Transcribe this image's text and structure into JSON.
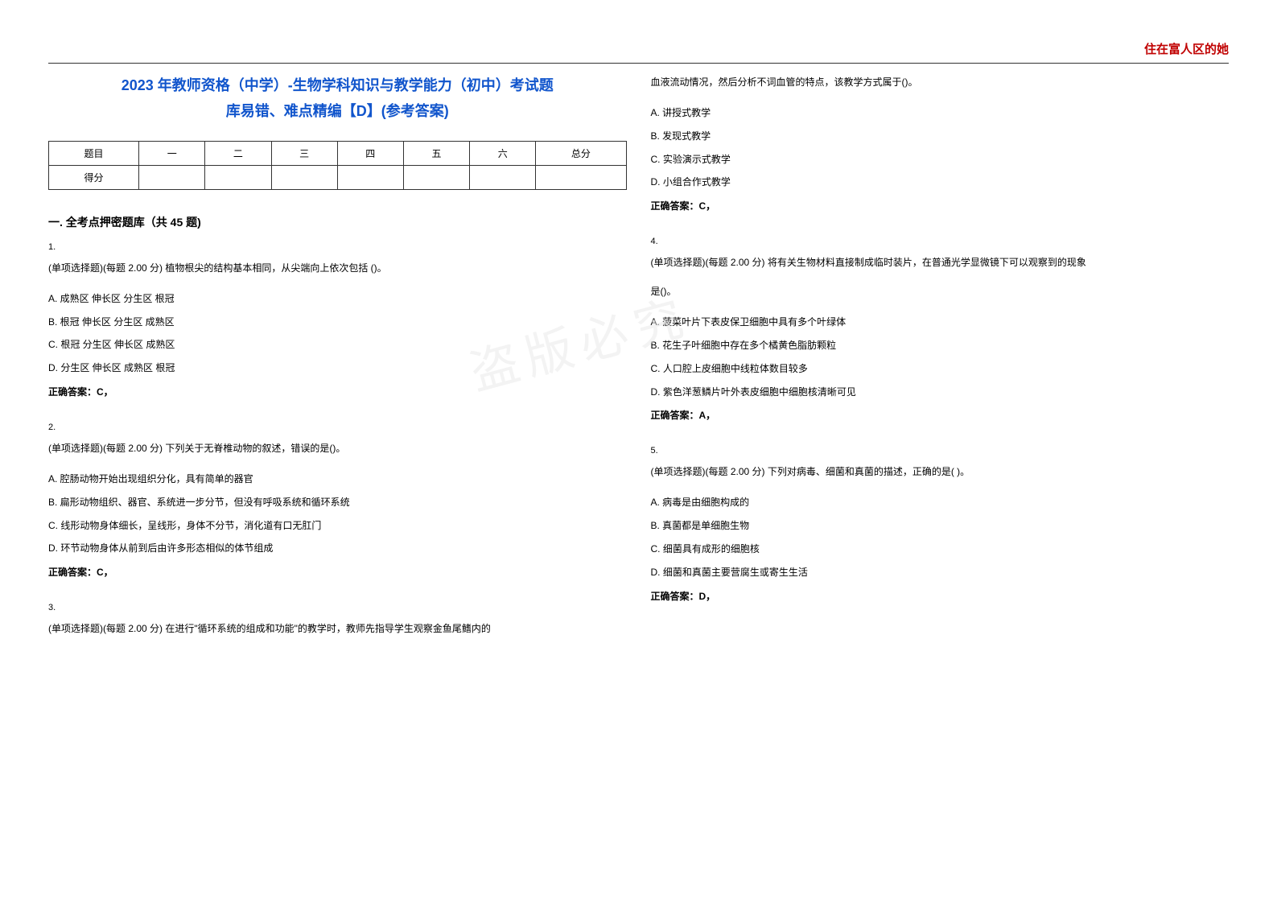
{
  "watermark_corner": "住在富人区的她",
  "watermark_center": "盗版必究",
  "title_line1": "2023 年教师资格（中学）-生物学科知识与教学能力（初中）考试题",
  "title_line2": "库易错、难点精编【D】(参考答案)",
  "score_table": {
    "headers": [
      "题目",
      "一",
      "二",
      "三",
      "四",
      "五",
      "六",
      "总分"
    ],
    "row_label": "得分"
  },
  "section_title": "一. 全考点押密题库（共 45 题)",
  "questions": {
    "q1": {
      "num": "1.",
      "stem": "(单项选择题)(每题 2.00 分) 植物根尖的结构基本相同，从尖端向上依次包括 ()。",
      "options": {
        "a": "A. 成熟区 伸长区 分生区 根冠",
        "b": "B. 根冠 伸长区 分生区 成熟区",
        "c": "C. 根冠 分生区 伸长区 成熟区",
        "d": "D. 分生区 伸长区 成熟区 根冠"
      },
      "answer": "正确答案：C，"
    },
    "q2": {
      "num": "2.",
      "stem": "(单项选择题)(每题 2.00 分) 下列关于无脊椎动物的叙述，错误的是()。",
      "options": {
        "a": "A. 腔肠动物开始出现组织分化，具有简单的器官",
        "b": "B. 扁形动物组织、器官、系统进一步分节，但没有呼吸系统和循环系统",
        "c": "C. 线形动物身体细长，呈线形，身体不分节，消化道有口无肛门",
        "d": "D. 环节动物身体从前到后由许多形态相似的体节组成"
      },
      "answer": "正确答案：C，"
    },
    "q3": {
      "num": "3.",
      "stem_part1": "(单项选择题)(每题 2.00 分) 在进行\"循环系统的组成和功能\"的教学时，教师先指导学生观察金鱼尾鳍内的",
      "stem_part2": "血液流动情况，然后分析不词血管的特点，该教学方式属于()。",
      "options": {
        "a": "A. 讲授式教学",
        "b": "B. 发现式教学",
        "c": "C. 实验演示式教学",
        "d": "D. 小组合作式教学"
      },
      "answer": "正确答案：C，"
    },
    "q4": {
      "num": "4.",
      "stem_part1": "(单项选择题)(每题 2.00 分) 将有关生物材料直接制成临时装片，在普通光学显微镜下可以观察到的现象",
      "stem_part2": "是()。",
      "options": {
        "a": "A. 菠菜叶片下表皮保卫细胞中具有多个叶绿体",
        "b": "B. 花生子叶细胞中存在多个橘黄色脂肪颗粒",
        "c": "C. 人口腔上皮细胞中线粒体数目较多",
        "d": "D. 紫色洋葱鳞片叶外表皮细胞中细胞核清晰可见"
      },
      "answer": "正确答案：A，"
    },
    "q5": {
      "num": "5.",
      "stem": "(单项选择题)(每题 2.00 分) 下列对病毒、细菌和真菌的描述，正确的是( )。",
      "options": {
        "a": "A. 病毒是由细胞构成的",
        "b": "B. 真菌都是单细胞生物",
        "c": "C. 细菌具有成形的细胞核",
        "d": "D. 细菌和真菌主要营腐生或寄生生活"
      },
      "answer": "正确答案：D，"
    }
  }
}
